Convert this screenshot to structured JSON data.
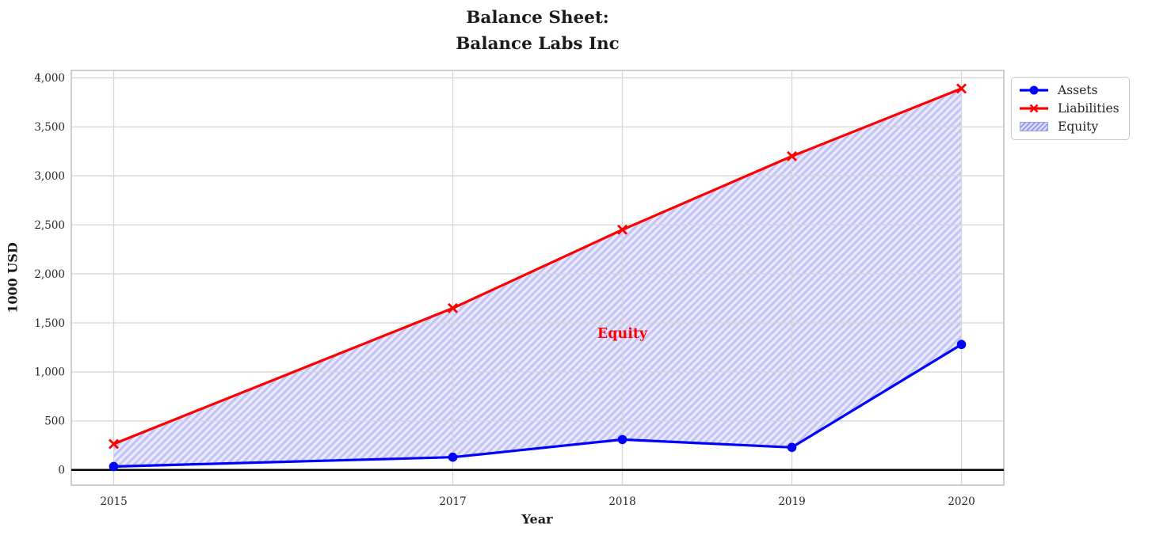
{
  "chart_data": {
    "type": "line",
    "title_lines": [
      "Balance Sheet:",
      "Balance Labs Inc"
    ],
    "xlabel": "Year",
    "ylabel": "1000 USD",
    "x": [
      2015,
      2017,
      2018,
      2019,
      2020
    ],
    "series": [
      {
        "name": "Assets",
        "color": "#0000ff",
        "marker": "circle",
        "values": [
          35,
          130,
          310,
          230,
          1280
        ]
      },
      {
        "name": "Liabilities",
        "color": "#ff0000",
        "marker": "x",
        "values": [
          265,
          1650,
          2450,
          3200,
          3890
        ]
      }
    ],
    "fill_between": {
      "label": "Equity",
      "between": [
        "Assets",
        "Liabilities"
      ],
      "hatch": "///"
    },
    "annotation": {
      "text": "Equity",
      "x": 2018,
      "y": 1390,
      "color": "#ff0000"
    },
    "x_ticks": {
      "values": [
        2015,
        2017,
        2018,
        2019,
        2020
      ],
      "labels": [
        "2015",
        "2017",
        "2018",
        "2019",
        "2020"
      ]
    },
    "y_ticks": {
      "values": [
        0,
        500,
        1000,
        1500,
        2000,
        2500,
        3000,
        3500,
        4000
      ],
      "labels": [
        "0",
        "500",
        "1,000",
        "1,500",
        "2,000",
        "2,500",
        "3,000",
        "3,500",
        "4,000"
      ]
    },
    "xlim": [
      2014.75,
      2020.25
    ],
    "ylim": [
      -155,
      4075
    ],
    "grid": true,
    "zero_line": true,
    "legend": {
      "position": "upper-right-outside",
      "entries": [
        "Assets",
        "Liabilities",
        "Equity"
      ]
    },
    "colors": {
      "assets": "#0000ff",
      "liabilities": "#ff0000",
      "equity_face": "rgba(80,80,240,0.12)",
      "equity_hatch": "rgba(80,80,240,0.25)",
      "legend_equity_face": "#dcdcf8",
      "legend_equity_hatch": "#8f8fe8",
      "legend_equity_edge": "#9b9bee",
      "grid": "#d6d6d6",
      "spine": "#c8c8c8",
      "zero_line": "#000000",
      "tick_text": "#262626",
      "annotation": "#ff0000"
    }
  }
}
